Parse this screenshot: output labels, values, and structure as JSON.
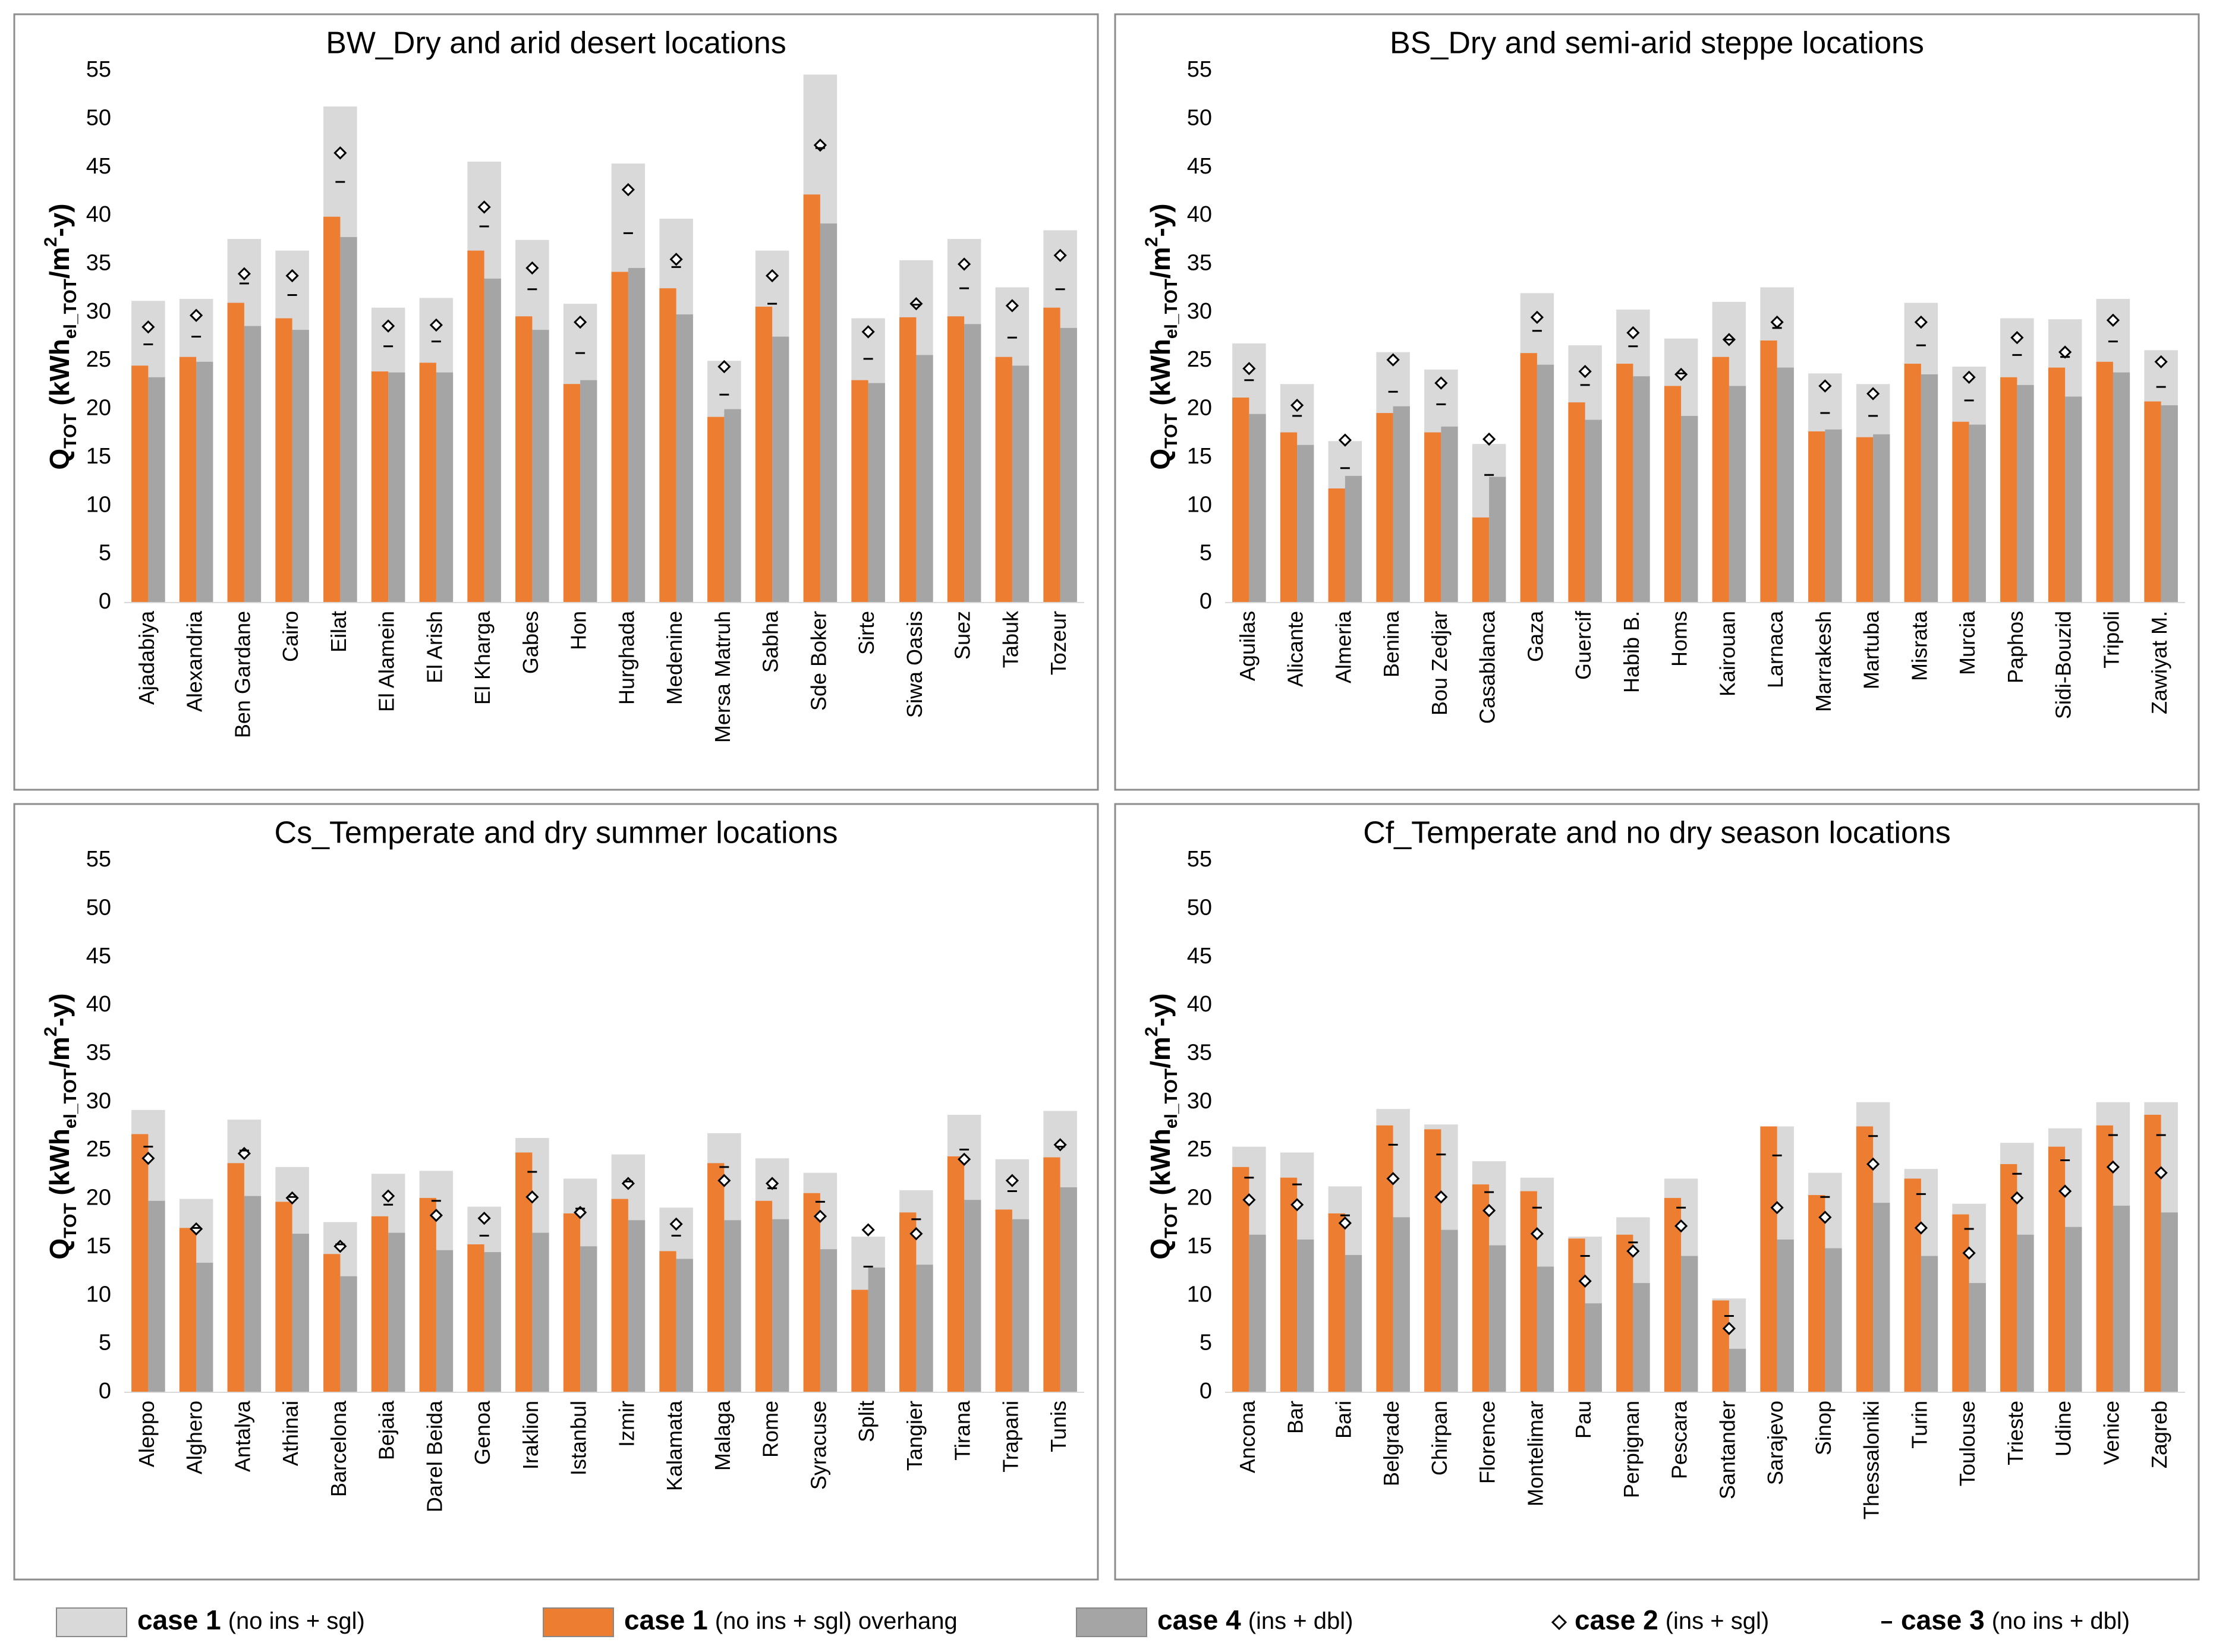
{
  "legend": {
    "items": [
      {
        "name": "case 1",
        "detail": "(no ins + sgl)",
        "color": "#d9d9d9",
        "marker": "box"
      },
      {
        "name": "case 1",
        "detail": "(no ins + sgl) overhang",
        "color": "#ed7d31",
        "marker": "box"
      },
      {
        "name": "case 4",
        "detail": "(ins + dbl)",
        "color": "#a5a5a5",
        "marker": "box"
      },
      {
        "name": "case 2",
        "detail": "(ins + sgl)",
        "color": "#000000",
        "marker": "diamond"
      },
      {
        "name": "case 3",
        "detail": "(no ins + dbl)",
        "color": "#000000",
        "marker": "dash"
      }
    ]
  },
  "chart_data": [
    {
      "type": "bar",
      "title": "BW_Dry and arid desert locations",
      "y_label": [
        {
          "text": "Q"
        },
        {
          "text": "TOT",
          "script": "sub"
        },
        {
          "text": " (kWh"
        },
        {
          "text": "el_TOT",
          "script": "sub"
        },
        {
          "text": "/m"
        },
        {
          "text": "2",
          "script": "super"
        },
        {
          "text": "-y)"
        }
      ],
      "ylim": [
        0,
        55
      ],
      "yticks": [
        0,
        5,
        10,
        15,
        20,
        25,
        30,
        35,
        40,
        45,
        50,
        55
      ],
      "grid": false,
      "categories": [
        "Ajadabiya",
        "Alexandria",
        "Ben Gardane",
        "Cairo",
        "Eilat",
        "El Alamein",
        "El Arish",
        "El Kharga",
        "Gabes",
        "Hon",
        "Hurghada",
        "Medenine",
        "Mersa Matruh",
        "Sabha",
        "Sde Boker",
        "Sirte",
        "Siwa Oasis",
        "Suez",
        "Tabuk",
        "Tozeur"
      ],
      "series": [
        {
          "values": [
            31.2,
            31.4,
            37.6,
            36.4,
            51.3,
            30.5,
            31.5,
            45.6,
            37.5,
            30.9,
            45.4,
            39.7,
            25.0,
            36.4,
            54.6,
            29.4,
            35.4,
            37.6,
            32.6,
            38.5
          ]
        },
        {
          "values": [
            24.5,
            25.4,
            31.0,
            29.4,
            39.9,
            23.9,
            24.8,
            36.4,
            29.6,
            22.6,
            34.2,
            32.5,
            19.2,
            30.6,
            42.2,
            23.0,
            29.5,
            29.6,
            25.4,
            30.5
          ]
        },
        {
          "values": [
            23.3,
            24.9,
            28.6,
            28.2,
            37.8,
            23.8,
            23.8,
            33.5,
            28.2,
            23.0,
            34.6,
            29.8,
            20.0,
            27.5,
            39.2,
            22.7,
            25.6,
            28.8,
            24.5,
            28.4
          ]
        },
        {
          "values": [
            28.5,
            29.7,
            34.0,
            33.8,
            46.5,
            28.6,
            28.7,
            40.9,
            34.6,
            29.0,
            42.7,
            35.5,
            24.4,
            33.8,
            47.3,
            28.0,
            30.9,
            35.0,
            30.7,
            35.9
          ]
        },
        {
          "values": [
            26.7,
            27.5,
            33.0,
            31.8,
            43.5,
            26.5,
            27.0,
            38.9,
            32.4,
            25.8,
            38.2,
            34.7,
            21.5,
            30.9,
            47.0,
            25.2,
            30.8,
            32.5,
            27.4,
            32.4
          ]
        }
      ]
    },
    {
      "type": "bar",
      "title": "BS_Dry and semi-arid steppe locations",
      "y_label": [
        {
          "text": "Q"
        },
        {
          "text": "TOT",
          "script": "sub"
        },
        {
          "text": " (kWh"
        },
        {
          "text": "el_TOT",
          "script": "sub"
        },
        {
          "text": "/m"
        },
        {
          "text": "2",
          "script": "super"
        },
        {
          "text": "-y)"
        }
      ],
      "ylim": [
        0,
        55
      ],
      "yticks": [
        0,
        5,
        10,
        15,
        20,
        25,
        30,
        35,
        40,
        45,
        50,
        55
      ],
      "grid": false,
      "categories": [
        "Aguilas",
        "Alicante",
        "Almeria",
        "Benina",
        "Bou Zedjar",
        "Casablanca",
        "Gaza",
        "Guercif",
        "Habib B.",
        "Homs",
        "Kairouan",
        "Larnaca",
        "Marrakesh",
        "Martuba",
        "Misrata",
        "Murcia",
        "Paphos",
        "Sidi-Bouzid",
        "Tripoli",
        "Zawiyat M."
      ],
      "series": [
        {
          "values": [
            26.8,
            22.6,
            16.7,
            25.9,
            24.1,
            16.4,
            32.0,
            26.6,
            30.3,
            27.3,
            31.1,
            32.6,
            23.7,
            22.6,
            31.0,
            24.4,
            29.4,
            29.3,
            31.4,
            26.1
          ]
        },
        {
          "values": [
            21.2,
            17.6,
            11.8,
            19.6,
            17.6,
            8.8,
            25.8,
            20.7,
            24.7,
            22.4,
            25.4,
            27.1,
            17.7,
            17.1,
            24.7,
            18.7,
            23.3,
            24.3,
            24.9,
            20.8
          ]
        },
        {
          "values": [
            19.5,
            16.3,
            13.1,
            20.3,
            18.2,
            13.0,
            24.6,
            18.9,
            23.4,
            19.3,
            22.4,
            24.3,
            17.9,
            17.4,
            23.6,
            18.4,
            22.5,
            21.3,
            23.8,
            20.4
          ]
        },
        {
          "values": [
            24.2,
            20.4,
            16.8,
            25.1,
            22.7,
            16.9,
            29.5,
            23.9,
            27.9,
            23.6,
            27.2,
            29.0,
            22.4,
            21.6,
            29.0,
            23.3,
            27.4,
            25.9,
            29.2,
            24.9
          ]
        },
        {
          "values": [
            23.0,
            19.3,
            13.9,
            21.8,
            20.5,
            13.2,
            28.1,
            22.5,
            26.5,
            23.7,
            27.2,
            28.4,
            19.6,
            19.3,
            26.6,
            20.9,
            25.6,
            25.4,
            27.0,
            22.3
          ]
        }
      ]
    },
    {
      "type": "bar",
      "title": "Cs_Temperate and dry summer locations",
      "y_label": [
        {
          "text": "Q"
        },
        {
          "text": "TOT",
          "script": "sub"
        },
        {
          "text": " (kWh"
        },
        {
          "text": "el_TOT",
          "script": "sub"
        },
        {
          "text": "/m"
        },
        {
          "text": "2",
          "script": "super"
        },
        {
          "text": "-y)"
        }
      ],
      "ylim": [
        0,
        55
      ],
      "yticks": [
        0,
        5,
        10,
        15,
        20,
        25,
        30,
        35,
        40,
        45,
        50,
        55
      ],
      "grid": false,
      "categories": [
        "Aleppo",
        "Alghero",
        "Antalya",
        "Athinai",
        "Barcelona",
        "Bejaia",
        "Darel Beida",
        "Genoa",
        "Iraklion",
        "Istanbul",
        "Izmir",
        "Kalamata",
        "Malaga",
        "Rome",
        "Syracuse",
        "Split",
        "Tangier",
        "Tirana",
        "Trapani",
        "Tunis"
      ],
      "series": [
        {
          "values": [
            29.2,
            20.0,
            28.2,
            23.3,
            17.6,
            22.6,
            22.9,
            19.2,
            26.3,
            22.1,
            24.6,
            19.1,
            26.8,
            24.2,
            22.7,
            16.1,
            20.9,
            28.7,
            24.1,
            29.1
          ]
        },
        {
          "values": [
            26.7,
            17.0,
            23.7,
            19.7,
            14.3,
            18.2,
            20.1,
            15.3,
            24.8,
            18.5,
            20.0,
            14.6,
            23.7,
            19.8,
            20.6,
            10.6,
            18.6,
            24.4,
            18.9,
            24.3
          ]
        },
        {
          "values": [
            19.8,
            13.4,
            20.3,
            16.4,
            12.0,
            16.5,
            14.7,
            14.5,
            16.5,
            15.1,
            17.8,
            13.8,
            17.8,
            17.9,
            14.8,
            12.9,
            13.2,
            19.9,
            17.9,
            21.2
          ]
        },
        {
          "values": [
            24.2,
            16.9,
            24.7,
            20.1,
            15.1,
            20.3,
            18.3,
            18.0,
            20.2,
            18.6,
            21.6,
            17.4,
            21.9,
            21.6,
            18.2,
            16.8,
            16.4,
            24.1,
            21.9,
            25.6
          ]
        },
        {
          "values": [
            25.4,
            17.0,
            25.0,
            20.2,
            15.3,
            19.4,
            19.8,
            16.2,
            22.8,
            19.0,
            21.8,
            16.2,
            23.3,
            21.1,
            19.7,
            13.0,
            17.9,
            25.1,
            20.8,
            25.4
          ]
        }
      ]
    },
    {
      "type": "bar",
      "title": "Cf_Temperate and no dry season locations",
      "y_label": [
        {
          "text": "Q"
        },
        {
          "text": "TOT",
          "script": "sub"
        },
        {
          "text": " (kWh"
        },
        {
          "text": "el_TOT",
          "script": "sub"
        },
        {
          "text": "/m"
        },
        {
          "text": "2",
          "script": "super"
        },
        {
          "text": "-y)"
        }
      ],
      "ylim": [
        0,
        55
      ],
      "yticks": [
        0,
        5,
        10,
        15,
        20,
        25,
        30,
        35,
        40,
        45,
        50,
        55
      ],
      "grid": false,
      "categories": [
        "Ancona",
        "Bar",
        "Bari",
        "Belgrade",
        "Chirpan",
        "Florence",
        "Montelimar",
        "Pau",
        "Perpignan",
        "Pescara",
        "Santander",
        "Sarajevo",
        "Sinop",
        "Thessaloniki",
        "Turin",
        "Toulouse",
        "Trieste",
        "Udine",
        "Venice",
        "Zagreb"
      ],
      "series": [
        {
          "values": [
            25.4,
            24.8,
            21.3,
            29.3,
            27.7,
            23.9,
            22.2,
            16.1,
            18.1,
            22.1,
            9.7,
            27.5,
            22.7,
            30.0,
            23.1,
            19.5,
            25.8,
            27.3,
            30.0,
            30.0
          ]
        },
        {
          "values": [
            23.3,
            22.2,
            18.5,
            27.6,
            27.2,
            21.5,
            20.8,
            15.9,
            16.3,
            20.1,
            9.5,
            27.5,
            20.4,
            27.5,
            22.1,
            18.4,
            23.6,
            25.4,
            27.6,
            28.7
          ]
        },
        {
          "values": [
            16.3,
            15.8,
            14.2,
            18.1,
            16.8,
            15.2,
            13.0,
            9.2,
            11.3,
            14.1,
            4.5,
            15.8,
            14.9,
            19.6,
            14.1,
            11.3,
            16.3,
            17.1,
            19.3,
            18.6
          ]
        },
        {
          "values": [
            19.9,
            19.4,
            17.5,
            22.1,
            20.2,
            18.8,
            16.4,
            11.5,
            14.6,
            17.2,
            6.6,
            19.1,
            18.1,
            23.6,
            17.0,
            14.4,
            20.1,
            20.8,
            23.3,
            22.7
          ]
        },
        {
          "values": [
            22.2,
            21.5,
            18.3,
            25.6,
            24.6,
            20.7,
            19.1,
            14.1,
            15.5,
            19.1,
            7.9,
            24.5,
            20.2,
            26.5,
            20.5,
            16.9,
            22.6,
            24.0,
            26.6,
            26.6
          ]
        }
      ]
    }
  ]
}
